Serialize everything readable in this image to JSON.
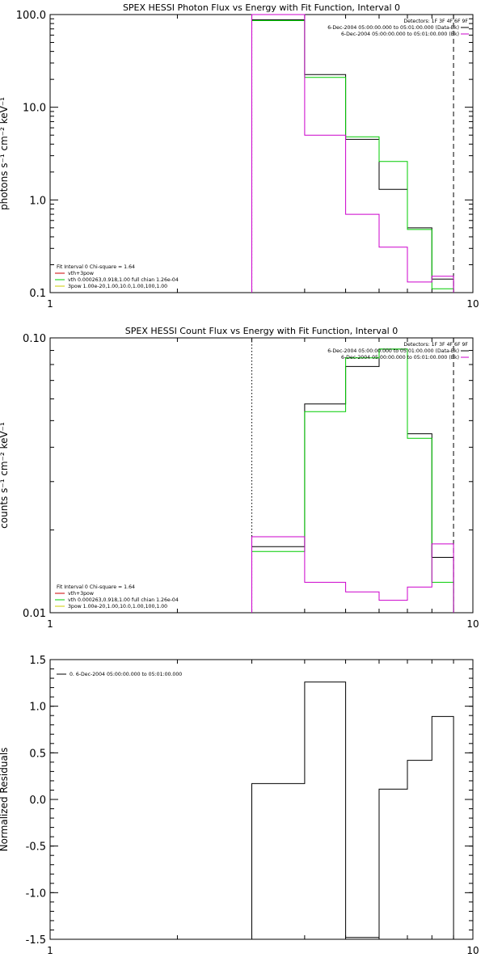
{
  "chart_data": [
    {
      "type": "line",
      "title": "SPEX HESSI Photon Flux vs Energy with Fit Function, Interval 0",
      "xlabel": "",
      "ylabel": "photons s⁻¹ cm⁻² keV⁻¹",
      "xscale": "log",
      "yscale": "log",
      "xlim": [
        1,
        10
      ],
      "ylim": [
        0.1,
        100
      ],
      "xticks": [
        {
          "v": 1,
          "label": "1"
        },
        {
          "v": 10,
          "label": "10"
        }
      ],
      "yticks": [
        {
          "v": 0.1,
          "label": "0.1"
        },
        {
          "v": 1,
          "label": "1.0"
        },
        {
          "v": 10,
          "label": "10.0"
        },
        {
          "v": 100,
          "label": "100.0"
        }
      ],
      "vlines": [
        {
          "x": 3,
          "style": "dotted",
          "color": "#000000"
        },
        {
          "x": 9,
          "style": "dashed",
          "color": "#000000"
        }
      ],
      "legend_top": [
        {
          "text": "Detectors: 1F 3F 4F 6F 9F",
          "color": "",
          "line": false
        },
        {
          "text": "6-Dec-2004 05:00:00.000 to 05:01:00.000 (Data-Bk)",
          "color": "#000000",
          "line": true
        },
        {
          "text": "6-Dec-2004 05:00:00.000 to 05:01:00.000 (Bk)",
          "color": "#cc00cc",
          "line": true
        }
      ],
      "legend_bottom": [
        {
          "text": "Fit Interval 0   Chi-square = 1.64",
          "color": "",
          "line": false
        },
        {
          "text": "vth+3pow",
          "color": "#cc0000",
          "line": true
        },
        {
          "text": "vth 0.000263,0.918,1.00  full chian 1.26e-04",
          "color": "#00cc00",
          "line": true
        },
        {
          "text": "3pow 1.00e-20,1.00,10.0,1.00,100,1.00",
          "color": "#cccc00",
          "line": true
        }
      ],
      "bin_edges": [
        3,
        4,
        5,
        6,
        7,
        8,
        9
      ],
      "series": [
        {
          "name": "Data-Bk",
          "color": "#000000",
          "values": [
            88,
            22.5,
            4.5,
            1.3,
            0.5,
            0.14
          ]
        },
        {
          "name": "Fit",
          "color": "#00cc00",
          "values": [
            86,
            21,
            4.8,
            2.6,
            0.48,
            0.11
          ]
        },
        {
          "name": "Bk",
          "color": "#cc00cc",
          "values": [
            100,
            5,
            0.7,
            0.31,
            0.13,
            0.15
          ]
        }
      ]
    },
    {
      "type": "line",
      "title": "SPEX HESSI Count Flux vs Energy with Fit Function, Interval 0",
      "xlabel": "",
      "ylabel": "counts s⁻¹ cm⁻² keV⁻¹",
      "xscale": "log",
      "yscale": "log",
      "xlim": [
        1,
        10
      ],
      "ylim": [
        0.01,
        0.1
      ],
      "xticks": [
        {
          "v": 1,
          "label": "1"
        },
        {
          "v": 10,
          "label": "10"
        }
      ],
      "yticks": [
        {
          "v": 0.01,
          "label": "0.01"
        },
        {
          "v": 0.1,
          "label": "0.10"
        }
      ],
      "vlines": [
        {
          "x": 3,
          "style": "dotted",
          "color": "#000000"
        },
        {
          "x": 9,
          "style": "dashed",
          "color": "#000000"
        }
      ],
      "legend_top": [
        {
          "text": "Detectors: 1F 3F 4F 6F 9F",
          "color": "",
          "line": false
        },
        {
          "text": "6-Dec-2004 05:00:00.000 to 05:01:00.000 (Data-Bk)",
          "color": "#000000",
          "line": true
        },
        {
          "text": "6-Dec-2004 05:00:00.000 to 05:01:00.000 (Bk)",
          "color": "#cc00cc",
          "line": true
        }
      ],
      "legend_bottom": [
        {
          "text": "Fit Interval 0   Chi-square = 1.64",
          "color": "",
          "line": false
        },
        {
          "text": "vth+3pow",
          "color": "#cc0000",
          "line": true
        },
        {
          "text": "vth 0.000263,0.918,1.00  full chian 1.26e-04",
          "color": "#00cc00",
          "line": true
        },
        {
          "text": "3pow 1.00e-20,1.00,10.0,1.00,100,1.00",
          "color": "#cccc00",
          "line": true
        }
      ],
      "bin_edges": [
        3,
        4,
        5,
        6,
        7,
        8,
        9
      ],
      "series": [
        {
          "name": "Data-Bk",
          "color": "#000000",
          "values": [
            0.0174,
            0.0575,
            0.0787,
            0.091,
            0.0448,
            0.0159
          ]
        },
        {
          "name": "Fit",
          "color": "#00cc00",
          "values": [
            0.0167,
            0.0539,
            0.0846,
            0.091,
            0.0431,
            0.0129
          ]
        },
        {
          "name": "Bk",
          "color": "#cc00cc",
          "values": [
            0.0189,
            0.0129,
            0.0119,
            0.0111,
            0.0124,
            0.0178
          ]
        }
      ]
    },
    {
      "type": "line",
      "title": "",
      "xlabel": "",
      "ylabel": "Normalized Residuals",
      "xscale": "log",
      "yscale": "linear",
      "xlim": [
        1,
        10
      ],
      "ylim": [
        -1.5,
        1.5
      ],
      "xticks": [
        {
          "v": 1,
          "label": "1"
        },
        {
          "v": 10,
          "label": "10"
        }
      ],
      "yticks": [
        {
          "v": 1.5,
          "label": "1.5"
        },
        {
          "v": 1.0,
          "label": "1.0"
        },
        {
          "v": 0.5,
          "label": "0.5"
        },
        {
          "v": 0.0,
          "label": "0.0"
        },
        {
          "v": -0.5,
          "label": "-0.5"
        },
        {
          "v": -1.0,
          "label": "-1.0"
        },
        {
          "v": -1.5,
          "label": "-1.5"
        }
      ],
      "vlines": [],
      "legend_top_left": [
        {
          "text": "0. 6-Dec-2004 05:00:00.000 to 05:01:00.000",
          "color": "#000000",
          "line": true
        }
      ],
      "bin_edges": [
        3,
        4,
        5,
        6,
        7,
        8,
        9
      ],
      "series": [
        {
          "name": "",
          "color": "#000000",
          "values": [
            0.17,
            1.26,
            -1.48,
            0.11,
            0.42,
            0.89
          ]
        }
      ]
    }
  ]
}
